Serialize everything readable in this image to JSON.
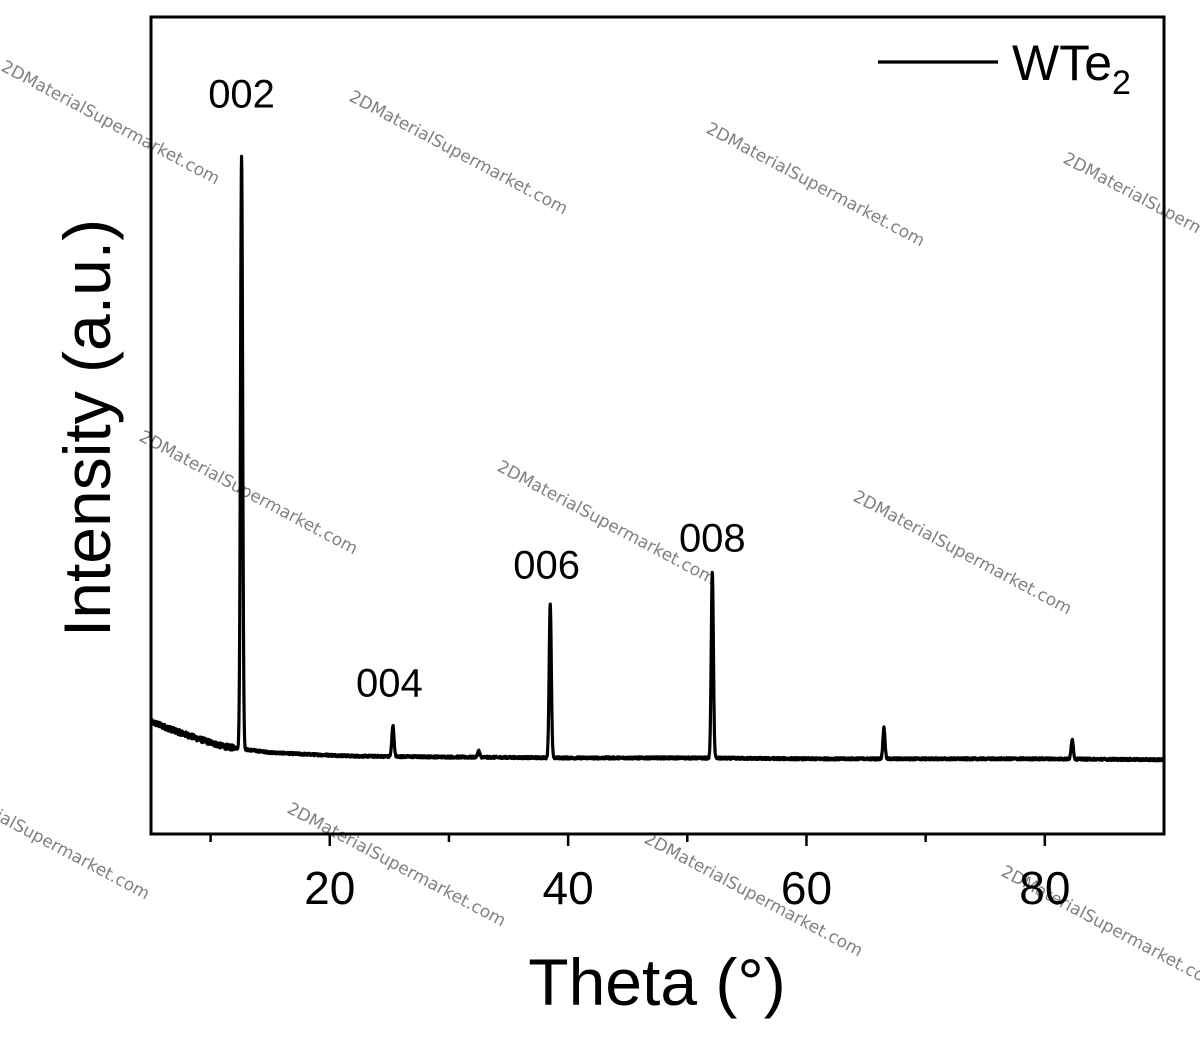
{
  "chart_data": {
    "type": "line",
    "xlabel": "Theta (°)",
    "ylabel": "Intensity (a.u.)",
    "xlim": [
      5,
      90
    ],
    "ylim": [
      -0.082,
      0.82
    ],
    "x_ticks_major": [
      20,
      40,
      60,
      80
    ],
    "x_ticks_minor": [
      10,
      30,
      50,
      70
    ],
    "y_ticks": [],
    "grid": false,
    "legend_position": "top-right",
    "series": [
      {
        "name": "WTe",
        "name_subscript": "2",
        "color": "#000000",
        "baseline": {
          "x": [
            5,
            7,
            9,
            11,
            12.5,
            15,
            18,
            22,
            30,
            40,
            50,
            60,
            70,
            80,
            90
          ],
          "y": [
            0.042,
            0.032,
            0.023,
            0.015,
            0.012,
            0.008,
            0.006,
            0.004,
            0.003,
            0.002,
            0.002,
            0.001,
            0.001,
            0.001,
            0.0
          ]
        },
        "peaks": [
          {
            "x": 12.6,
            "y": 0.655
          },
          {
            "x": 25.3,
            "y": 0.034
          },
          {
            "x": 32.5,
            "y": 0.007
          },
          {
            "x": 38.5,
            "y": 0.17
          },
          {
            "x": 52.1,
            "y": 0.205
          },
          {
            "x": 66.5,
            "y": 0.034
          },
          {
            "x": 82.3,
            "y": 0.022
          }
        ]
      }
    ],
    "annotations": [
      {
        "text": "002",
        "x": 12.6,
        "y": 0.72
      },
      {
        "text": "004",
        "x": 25.0,
        "y": 0.07
      },
      {
        "text": "006",
        "x": 38.2,
        "y": 0.2
      },
      {
        "text": "008",
        "x": 52.1,
        "y": 0.23
      }
    ]
  },
  "watermark_text": "2DMaterialSupermarket.com"
}
